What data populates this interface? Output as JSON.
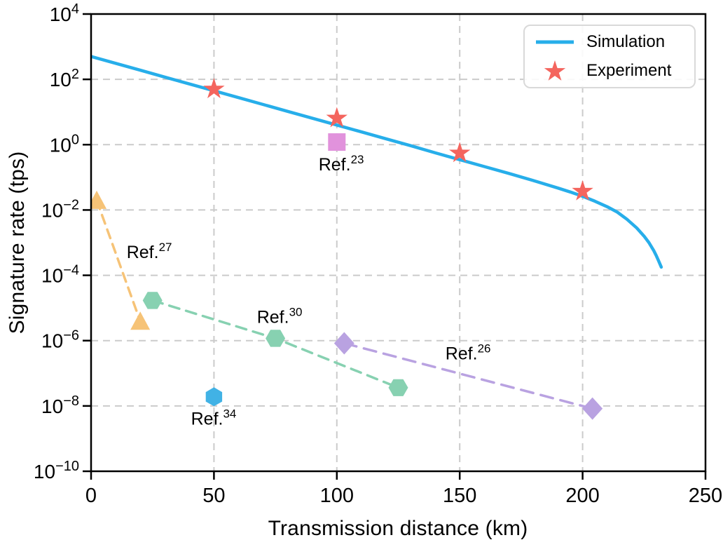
{
  "figure": {
    "background": "#ffffff",
    "text_color": "#000000",
    "grid_color": "#cbcbcb",
    "spine_color": "#000000"
  },
  "axes": {
    "x": {
      "label": "Transmission distance (km)",
      "min": 0,
      "max": 250,
      "ticks": [
        0,
        50,
        100,
        150,
        200,
        250
      ]
    },
    "y": {
      "label": "Signature rate (tps)",
      "scale": "log",
      "tick_base": "10",
      "min_exp": -10,
      "max_exp": 4,
      "tick_exponents": [
        4,
        2,
        0,
        -2,
        -4,
        -6,
        -8,
        -10
      ]
    }
  },
  "legend": {
    "items": [
      {
        "label": "Simulation",
        "marker": "line",
        "color": "#27aeea"
      },
      {
        "label": "Experiment",
        "marker": "star",
        "color": "#f4655e"
      }
    ]
  },
  "chart_data": {
    "type": "line",
    "title": "",
    "xlabel": "Transmission distance (km)",
    "ylabel": "Signature rate (tps)",
    "xlim": [
      0,
      250
    ],
    "ylim": [
      "1e-10",
      "1e4"
    ],
    "grid": "dashed gray at major ticks, both axes",
    "legend_position": "upper right",
    "series": [
      {
        "name": "Ref.23",
        "color": "#e192dc",
        "marker": "square",
        "line": "none",
        "points": [
          [
            100,
            0.08
          ]
        ],
        "rates_tps": [
          "1.2"
        ]
      },
      {
        "name": "Ref.27",
        "color": "#f6c377",
        "marker": "triangle-up",
        "line": "dashed",
        "dash": [
          13,
          9
        ],
        "points": [
          [
            2.3,
            -1.71
          ],
          [
            20,
            -5.41
          ]
        ],
        "rates_tps": [
          "2.0e-2",
          "3.9e-6"
        ]
      },
      {
        "name": "Ref.30",
        "color": "#87d1b1",
        "marker": "hexagon-flat",
        "line": "dashed",
        "dash": [
          15,
          10
        ],
        "points": [
          [
            25,
            -4.77
          ],
          [
            75,
            -5.93
          ],
          [
            125,
            -7.44
          ]
        ],
        "rates_tps": [
          "1.7e-5",
          "1.2e-6",
          "3.7e-8"
        ]
      },
      {
        "name": "Ref.26",
        "color": "#b9a2e1",
        "marker": "diamond",
        "line": "dashed",
        "dash": [
          18,
          11
        ],
        "points": [
          [
            103,
            -6.08
          ],
          [
            204,
            -8.08
          ]
        ],
        "rates_tps": [
          "8.3e-7",
          "8.3e-9"
        ]
      },
      {
        "name": "Ref.34",
        "color": "#41b2e5",
        "marker": "hexagon-pointy",
        "line": "none",
        "points": [
          [
            50,
            -7.72
          ]
        ],
        "rates_tps": [
          "1.9e-8"
        ]
      },
      {
        "name": "Simulation",
        "color": "#27aeea",
        "marker": "none",
        "line": "solid",
        "points": [
          [
            0,
            2.7
          ],
          [
            10,
            2.49
          ],
          [
            20,
            2.28
          ],
          [
            30,
            2.07
          ],
          [
            40,
            1.86
          ],
          [
            50,
            1.65
          ],
          [
            60,
            1.44
          ],
          [
            70,
            1.23
          ],
          [
            80,
            1.02
          ],
          [
            90,
            0.81
          ],
          [
            100,
            0.6
          ],
          [
            110,
            0.39
          ],
          [
            120,
            0.18
          ],
          [
            130,
            -0.03
          ],
          [
            140,
            -0.25
          ],
          [
            150,
            -0.46
          ],
          [
            160,
            -0.67
          ],
          [
            170,
            -0.88
          ],
          [
            180,
            -1.1
          ],
          [
            190,
            -1.33
          ],
          [
            195,
            -1.45
          ],
          [
            200,
            -1.58
          ],
          [
            205,
            -1.73
          ],
          [
            210,
            -1.9
          ],
          [
            214,
            -2.06
          ],
          [
            218,
            -2.28
          ],
          [
            222,
            -2.55
          ],
          [
            225,
            -2.8
          ],
          [
            227,
            -3.0
          ],
          [
            229,
            -3.25
          ],
          [
            230,
            -3.4
          ],
          [
            231,
            -3.57
          ],
          [
            232,
            -3.75
          ]
        ],
        "rates_tps": [
          "~5e2 at 0 km, ~2e-4 at 232 km"
        ]
      },
      {
        "name": "Experiment",
        "color": "#f4655e",
        "marker": "star",
        "line": "none",
        "points": [
          [
            50,
            1.7
          ],
          [
            100,
            0.81
          ],
          [
            150,
            -0.26
          ],
          [
            200,
            -1.43
          ]
        ],
        "rates_tps": [
          "5.0e1",
          "6.5",
          "5.5e-1",
          "3.7e-2"
        ]
      }
    ],
    "annotations": [
      {
        "text": "Ref.",
        "sup": "27",
        "x_km": 23.7,
        "y_log10": -3.28
      },
      {
        "text": "Ref.",
        "sup": "23",
        "x_km": 101.8,
        "y_log10": -0.59
      },
      {
        "text": "Ref.",
        "sup": "30",
        "x_km": 76.7,
        "y_log10": -5.26
      },
      {
        "text": "Ref.",
        "sup": "26",
        "x_km": 153.4,
        "y_log10": -6.38
      },
      {
        "text": "Ref.",
        "sup": "34",
        "x_km": 49.9,
        "y_log10": -8.38
      }
    ]
  }
}
